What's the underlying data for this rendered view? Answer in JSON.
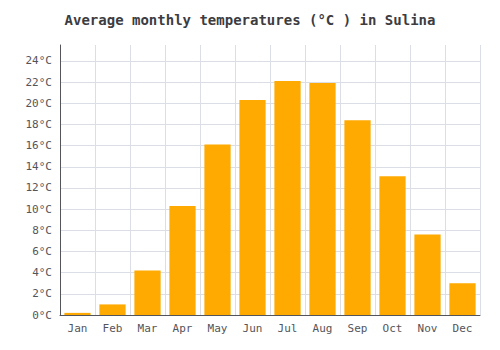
{
  "chart_data": {
    "type": "bar",
    "title": "Average monthly temperatures (°C ) in Sulina",
    "categories": [
      "Jan",
      "Feb",
      "Mar",
      "Apr",
      "May",
      "Jun",
      "Jul",
      "Aug",
      "Sep",
      "Oct",
      "Nov",
      "Dec"
    ],
    "values": [
      0.2,
      1.0,
      4.2,
      10.3,
      16.1,
      20.3,
      22.1,
      21.9,
      18.4,
      13.1,
      7.6,
      3.0
    ],
    "color": "#FFAA00",
    "ylim": [
      0,
      25.5
    ],
    "yticks": [
      {
        "value": 0,
        "label": "0°C"
      },
      {
        "value": 2,
        "label": "2°C"
      },
      {
        "value": 4,
        "label": "4°C"
      },
      {
        "value": 6,
        "label": "6°C"
      },
      {
        "value": 8,
        "label": "8°C"
      },
      {
        "value": 10,
        "label": "10°C"
      },
      {
        "value": 12,
        "label": "12°C"
      },
      {
        "value": 14,
        "label": "14°C"
      },
      {
        "value": 16,
        "label": "16°C"
      },
      {
        "value": 18,
        "label": "18°C"
      },
      {
        "value": 20,
        "label": "20°C"
      },
      {
        "value": 22,
        "label": "22°C"
      },
      {
        "value": 24,
        "label": "24°C"
      }
    ],
    "grid": true
  }
}
